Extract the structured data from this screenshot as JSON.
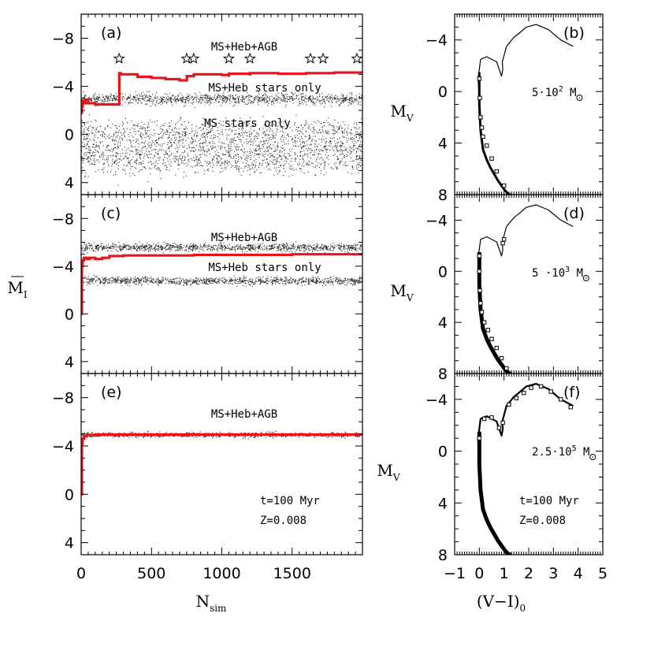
{
  "figure": {
    "x_label_left": "N",
    "x_label_left_sub": "sim",
    "y_label_left": "M",
    "y_label_left_sub": "I",
    "x_label_right": "(V−I)",
    "x_label_right_sub": "0",
    "y_label_right": "M",
    "y_label_right_sub": "V"
  },
  "chart_data": [
    {
      "type": "scatter",
      "panel": "a",
      "panel_label": "(a)",
      "xlabel": "N_sim",
      "ylabel": "M_I",
      "xlim": [
        0,
        2000
      ],
      "ylim": [
        5,
        -10
      ],
      "yticks": [
        4,
        0,
        -4,
        -8
      ],
      "xticks": [
        0,
        500,
        1000,
        1500
      ],
      "annotations": [
        "MS+Heb+AGB",
        "MS+Heb stars only",
        "MS stars only"
      ],
      "star_markers_x": [
        270,
        750,
        800,
        1050,
        1200,
        1630,
        1720,
        1960
      ],
      "star_markers_y": -6.3,
      "scatter_bands": [
        {
          "name": "MS+Heb stars only",
          "center": -3.0,
          "spread": 0.5,
          "start": 0
        },
        {
          "name": "MS stars only",
          "center": 1.0,
          "spread": 2.5,
          "start": 0
        }
      ],
      "series": [
        {
          "name": "cumulative mean M_I",
          "color": "#e8141c",
          "x": [
            0,
            5,
            10,
            20,
            30,
            50,
            100,
            150,
            200,
            270,
            271,
            280,
            400,
            500,
            600,
            700,
            750,
            751,
            800,
            801,
            1000,
            1050,
            1051,
            1200,
            1201,
            1400,
            1600,
            1800,
            2000
          ],
          "y": [
            -1.8,
            -2.3,
            -2.8,
            -2.6,
            -2.9,
            -2.6,
            -2.5,
            -2.5,
            -2.5,
            -2.5,
            -5.1,
            -5.0,
            -4.8,
            -4.7,
            -4.6,
            -4.5,
            -4.5,
            -4.85,
            -4.85,
            -5.0,
            -4.95,
            -4.9,
            -5.05,
            -5.0,
            -5.1,
            -5.05,
            -5.1,
            -5.15,
            -5.2
          ]
        }
      ]
    },
    {
      "type": "line",
      "panel": "b",
      "panel_label": "(b)",
      "xlabel": "(V−I)_0",
      "ylabel": "M_V",
      "xlim": [
        -1,
        5
      ],
      "ylim": [
        8,
        -6
      ],
      "yticks": [
        8,
        4,
        0,
        -4
      ],
      "xticks": [
        -1,
        0,
        1,
        2,
        3,
        4,
        5
      ],
      "mass_label_value": "5·10",
      "mass_label_exp": "2",
      "mass_label_unit": " M",
      "isochrone": {
        "x": [
          0.0,
          0.0,
          0.05,
          0.15,
          0.3,
          0.45,
          0.6,
          0.75,
          0.9,
          1.05,
          1.2,
          1.3
        ],
        "y": [
          -1.5,
          1.0,
          3.0,
          4.5,
          5.3,
          5.9,
          6.4,
          6.9,
          7.3,
          7.7,
          8.0,
          8.0
        ]
      },
      "upper_branch": {
        "x": [
          0.0,
          -0.05,
          0.05,
          0.3,
          0.7,
          0.9,
          0.95,
          0.93,
          1.1,
          1.4,
          1.6,
          1.9,
          2.3,
          2.8,
          3.3,
          3.8
        ],
        "y": [
          1.0,
          -1.0,
          -2.5,
          -2.7,
          -2.3,
          -1.2,
          -1.7,
          -2.3,
          -3.5,
          -4.2,
          -4.5,
          -5.0,
          -5.2,
          -4.8,
          -4.0,
          -3.5
        ]
      },
      "sample_points": {
        "x": [
          0.0,
          0.02,
          0.05,
          0.1,
          0.15,
          0.3,
          0.5,
          0.7,
          1.0
        ],
        "y": [
          -1.0,
          0.5,
          2.0,
          2.8,
          3.5,
          4.2,
          5.2,
          6.2,
          7.3
        ]
      }
    },
    {
      "type": "scatter",
      "panel": "c",
      "panel_label": "(c)",
      "xlabel": "N_sim",
      "ylabel": "M_I",
      "xlim": [
        0,
        2000
      ],
      "ylim": [
        5,
        -10
      ],
      "yticks": [
        4,
        0,
        -4,
        -8
      ],
      "xticks": [
        0,
        500,
        1000,
        1500
      ],
      "annotations": [
        "MS+Heb+AGB",
        "MS+Heb stars only"
      ],
      "scatter_bands": [
        {
          "name": "MS+Heb+AGB",
          "center": -5.6,
          "spread": 0.35,
          "start": 0
        },
        {
          "name": "MS+Heb stars only",
          "center": -2.8,
          "spread": 0.35,
          "start": 0
        }
      ],
      "series": [
        {
          "name": "cumulative mean M_I",
          "color": "#e8141c",
          "x": [
            0,
            5,
            10,
            20,
            40,
            60,
            100,
            150,
            200,
            300,
            500,
            800,
            1000,
            1500,
            2000
          ],
          "y": [
            0.0,
            -4.0,
            -4.5,
            -4.7,
            -4.6,
            -4.7,
            -4.6,
            -4.7,
            -4.85,
            -4.9,
            -4.9,
            -4.95,
            -4.95,
            -5.0,
            -5.0
          ]
        }
      ]
    },
    {
      "type": "line",
      "panel": "d",
      "panel_label": "(d)",
      "xlabel": "(V−I)_0",
      "ylabel": "M_V",
      "xlim": [
        -1,
        5
      ],
      "ylim": [
        8,
        -6
      ],
      "yticks": [
        8,
        4,
        0,
        -4
      ],
      "xticks": [
        -1,
        0,
        1,
        2,
        3,
        4,
        5
      ],
      "mass_label_value": "5 ·10",
      "mass_label_exp": "3",
      "mass_label_unit": " M",
      "isochrone": {
        "x": [
          0.0,
          0.0,
          0.05,
          0.15,
          0.3,
          0.45,
          0.6,
          0.75,
          0.9,
          1.05,
          1.2,
          1.3
        ],
        "y": [
          -1.5,
          1.0,
          3.0,
          4.5,
          5.3,
          5.9,
          6.4,
          6.9,
          7.3,
          7.7,
          8.0,
          8.0
        ]
      },
      "upper_branch": {
        "x": [
          0.0,
          -0.05,
          0.05,
          0.3,
          0.7,
          0.9,
          0.95,
          0.93,
          1.1,
          1.4,
          1.6,
          1.9,
          2.3,
          2.8,
          3.3,
          3.8
        ],
        "y": [
          1.0,
          -1.0,
          -2.5,
          -2.7,
          -2.3,
          -1.2,
          -1.7,
          -2.3,
          -3.5,
          -4.2,
          -4.5,
          -5.0,
          -5.2,
          -4.8,
          -4.0,
          -3.5
        ]
      },
      "sample_points": {
        "x": [
          0.0,
          0.0,
          0.02,
          0.05,
          0.1,
          0.2,
          0.35,
          0.5,
          0.7,
          0.9,
          1.1,
          0.95,
          1.0
        ],
        "y": [
          -1.2,
          0.0,
          1.5,
          2.5,
          3.2,
          4.0,
          4.6,
          5.3,
          6.0,
          6.8,
          7.6,
          -2.2,
          -2.5
        ]
      }
    },
    {
      "type": "scatter",
      "panel": "e",
      "panel_label": "(e)",
      "xlabel": "N_sim",
      "ylabel": "M_I",
      "xlim": [
        0,
        2000
      ],
      "ylim": [
        5,
        -10
      ],
      "yticks": [
        4,
        0,
        -4,
        -8
      ],
      "xticks": [
        0,
        500,
        1000,
        1500
      ],
      "annotations": [
        "MS+Heb+AGB"
      ],
      "info_lines": [
        "t=100 Myr",
        "Z=0.008"
      ],
      "scatter_bands": [
        {
          "name": "MS+Heb+AGB",
          "center": -4.95,
          "spread": 0.2,
          "start": 0
        }
      ],
      "series": [
        {
          "name": "cumulative mean M_I",
          "color": "#e8141c",
          "x": [
            0,
            5,
            10,
            20,
            40,
            100,
            200,
            500,
            1000,
            1500,
            2000
          ],
          "y": [
            0.0,
            -4.2,
            -4.6,
            -4.8,
            -4.9,
            -4.95,
            -4.95,
            -4.95,
            -4.95,
            -4.95,
            -4.95
          ]
        }
      ]
    },
    {
      "type": "line",
      "panel": "f",
      "panel_label": "(f)",
      "xlabel": "(V−I)_0",
      "ylabel": "M_V",
      "xlim": [
        -1,
        5
      ],
      "ylim": [
        8,
        -6
      ],
      "yticks": [
        8,
        4,
        0,
        -4
      ],
      "xticks": [
        -1,
        0,
        1,
        2,
        3,
        4,
        5
      ],
      "mass_label_value": "2.5·10",
      "mass_label_exp": "5",
      "mass_label_unit": " M",
      "info_lines": [
        "t=100 Myr",
        "Z=0.008"
      ],
      "isochrone": {
        "x": [
          0.0,
          0.0,
          0.05,
          0.15,
          0.3,
          0.45,
          0.6,
          0.75,
          0.9,
          1.05,
          1.2,
          1.3
        ],
        "y": [
          -1.5,
          1.0,
          3.0,
          4.5,
          5.3,
          5.9,
          6.4,
          6.9,
          7.3,
          7.7,
          8.0,
          8.0
        ]
      },
      "upper_branch": {
        "x": [
          0.0,
          -0.05,
          0.05,
          0.3,
          0.7,
          0.9,
          0.95,
          0.93,
          1.1,
          1.4,
          1.6,
          1.9,
          2.3,
          2.8,
          3.3,
          3.8
        ],
        "y": [
          1.0,
          -1.0,
          -2.5,
          -2.7,
          -2.3,
          -1.2,
          -1.7,
          -2.3,
          -3.5,
          -4.2,
          -4.5,
          -5.0,
          -5.2,
          -4.8,
          -4.0,
          -3.5
        ]
      },
      "sample_points": {
        "x": [
          0.0,
          0.2,
          0.5,
          0.8,
          0.95,
          1.2,
          1.5,
          1.8,
          2.1,
          2.5,
          2.9,
          3.3,
          3.7
        ],
        "y": [
          -1.0,
          -2.5,
          -2.6,
          -1.8,
          -2.2,
          -3.6,
          -4.1,
          -4.5,
          -4.9,
          -5.0,
          -4.6,
          -4.0,
          -3.4
        ]
      }
    }
  ]
}
